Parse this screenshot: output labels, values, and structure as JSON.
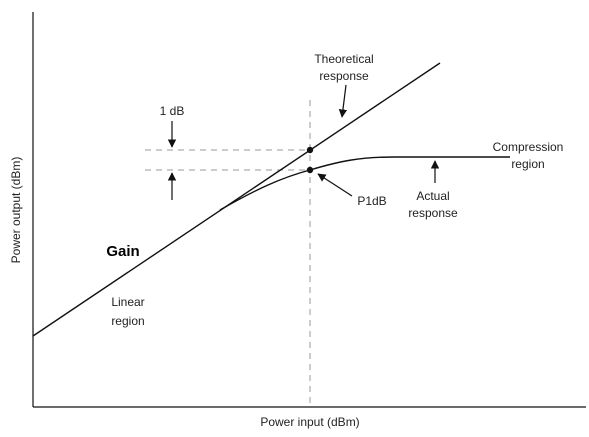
{
  "axes": {
    "x_label": "Power input (dBm)",
    "y_label": "Power output (dBm)"
  },
  "annotations": {
    "theoretical_line1": "Theoretical",
    "theoretical_line2": "response",
    "one_db": "1 dB",
    "compression_line1": "Compression",
    "compression_line2": "region",
    "p1db": "P1dB",
    "actual_line1": "Actual",
    "actual_line2": "response",
    "gain": "Gain",
    "linear_line1": "Linear",
    "linear_line2": "region"
  }
}
